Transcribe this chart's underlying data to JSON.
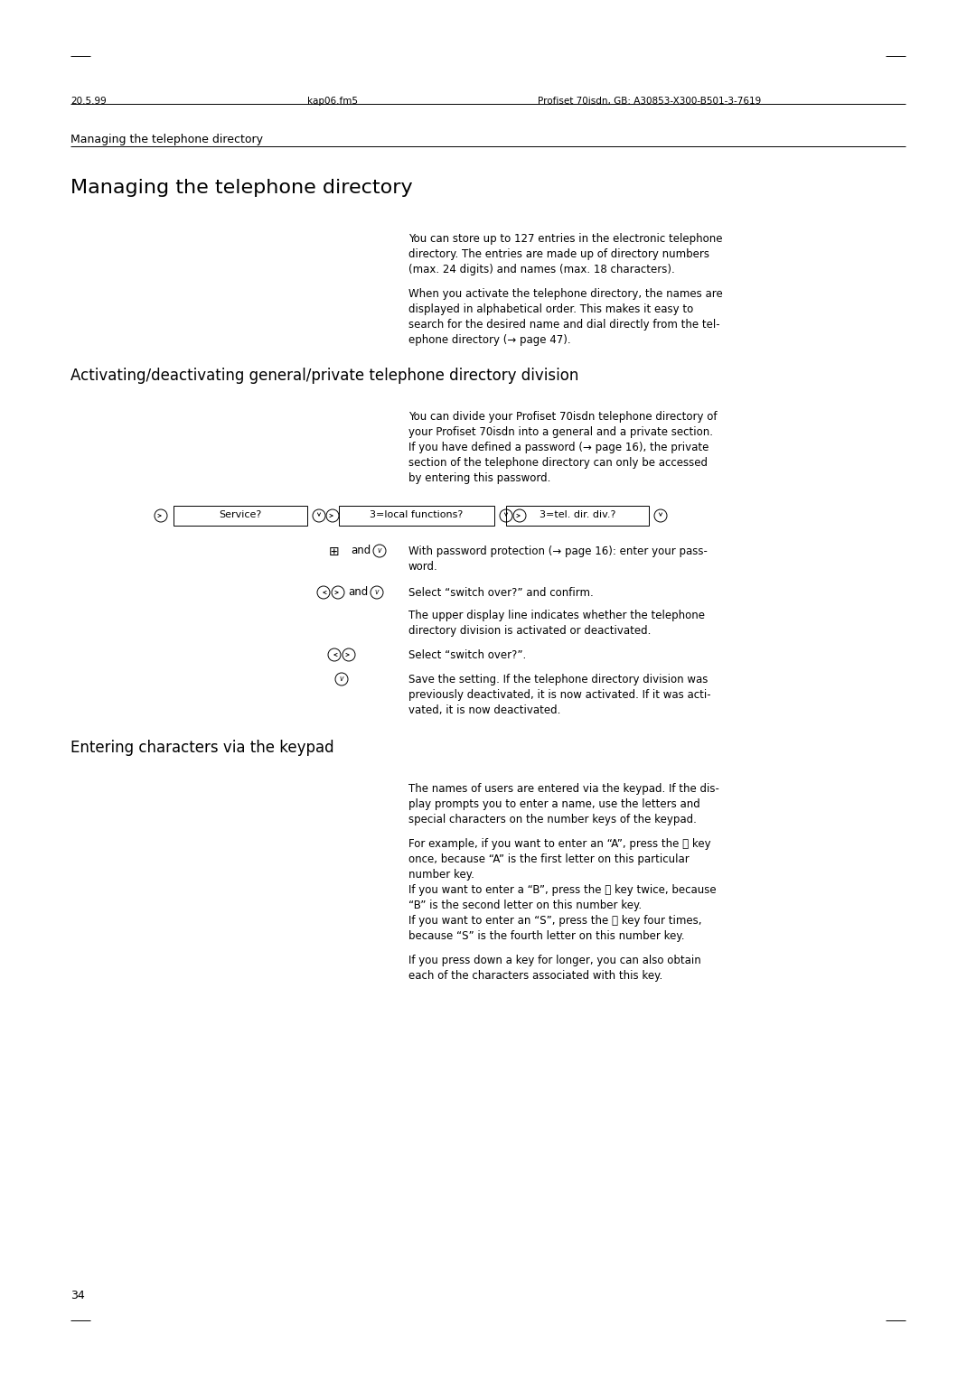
{
  "bg_color": "#ffffff",
  "page_width": 10.8,
  "page_height": 15.28,
  "breadcrumb": "Managing the telephone directory",
  "main_title": "Managing the telephone directory",
  "section1_title": "Activating/deactivating general/private telephone directory division",
  "section2_title": "Entering characters via the keypad",
  "page_number": "34",
  "para1_lines": [
    "You can store up to 127 entries in the electronic telephone",
    "directory. The entries are made up of directory numbers",
    "(max. 24 digits) and names (max. 18 characters)."
  ],
  "para2_lines": [
    "When you activate the telephone directory, the names are",
    "displayed in alphabetical order. This makes it easy to",
    "search for the desired name and dial directly from the tel-",
    "ephone directory (→ page 47)."
  ],
  "para3_lines": [
    "You can divide your Profiset 70isdn telephone directory of",
    "your Profiset 70isdn into a general and a private section.",
    "If you have defined a password (→ page 16), the private",
    "section of the telephone directory can only be accessed",
    "by entering this password."
  ],
  "nav_labels": [
    "Service?",
    "3=local functions?",
    "3=tel. dir. div.?"
  ],
  "step1_lines": [
    "With password protection (→ page 16): enter your pass-",
    "word."
  ],
  "step2": "Select “switch over?” and confirm.",
  "step3_lines": [
    "The upper display line indicates whether the telephone",
    "directory division is activated or deactivated."
  ],
  "step4": "Select “switch over?”.",
  "step5_lines": [
    "Save the setting. If the telephone directory division was",
    "previously deactivated, it is now activated. If it was acti-",
    "vated, it is now deactivated."
  ],
  "para4_lines": [
    "The names of users are entered via the keypad. If the dis-",
    "play prompts you to enter a name, use the letters and",
    "special characters on the number keys of the keypad."
  ],
  "para5_lines": [
    "For example, if you want to enter an “A”, press the ⓷ key",
    "once, because “A” is the first letter on this particular",
    "number key.",
    "If you want to enter a “B”, press the ⓷ key twice, because",
    "“B” is the second letter on this number key.",
    "If you want to enter an “S”, press the ⓷ key four times,",
    "because “S” is the fourth letter on this number key."
  ],
  "para6_lines": [
    "If you press down a key for longer, you can also obtain",
    "each of the characters associated with this key."
  ]
}
